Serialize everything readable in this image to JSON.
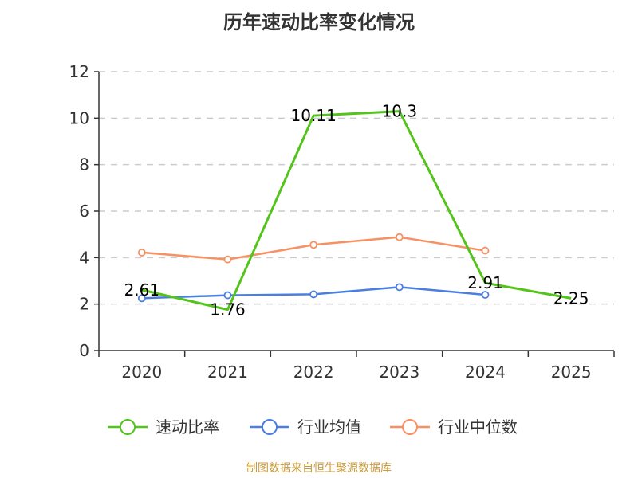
{
  "title": "历年速动比率变化情况",
  "footer": "制图数据来自恒生聚源数据库",
  "chart_data": {
    "type": "line",
    "categories": [
      "2020",
      "2021",
      "2022",
      "2023",
      "2024",
      "2025"
    ],
    "y_ticks": [
      0,
      2,
      4,
      6,
      8,
      10,
      12
    ],
    "ylim": [
      0,
      12
    ],
    "grid": true,
    "legend_position": "bottom",
    "series": [
      {
        "name": "速动比率",
        "values": [
          2.61,
          1.76,
          10.11,
          10.3,
          2.91,
          2.25
        ],
        "labels": [
          "2.61",
          "1.76",
          "10.11",
          "10.3",
          "2.91",
          "2.25"
        ],
        "color": "#52c41a",
        "show_markers": false
      },
      {
        "name": "行业均值",
        "values": [
          2.25,
          2.38,
          2.42,
          2.73,
          2.4,
          null
        ],
        "color": "#4a7ee0",
        "show_markers": true
      },
      {
        "name": "行业中位数",
        "values": [
          4.22,
          3.92,
          4.55,
          4.88,
          4.3,
          null
        ],
        "color": "#f79163",
        "show_markers": true
      }
    ]
  }
}
